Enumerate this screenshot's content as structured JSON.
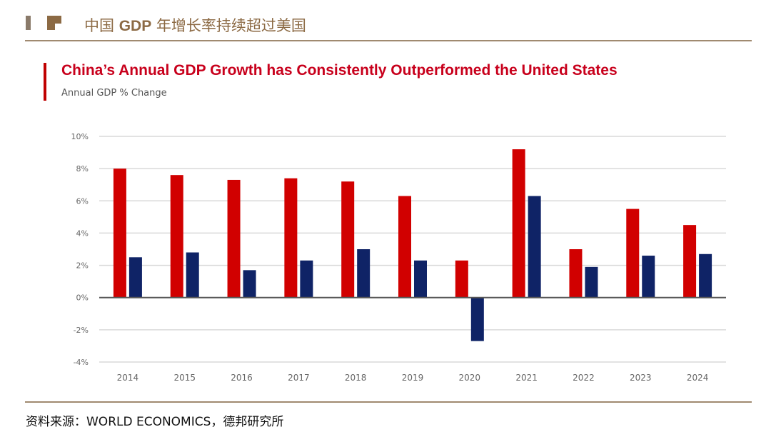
{
  "header": {
    "prefix": "中国 ",
    "bold": "GDP",
    "suffix": " 年增长率持续超过美国"
  },
  "chart_data": {
    "type": "bar",
    "title": "China’s Annual GDP Growth has Consistently Outperformed the United States",
    "subtitle": "Annual GDP % Change",
    "categories": [
      "2014",
      "2015",
      "2016",
      "2017",
      "2018",
      "2019",
      "2020",
      "2021",
      "2022",
      "2023",
      "2024"
    ],
    "series": [
      {
        "values": [
          8.0,
          7.6,
          7.3,
          7.4,
          7.2,
          6.3,
          2.3,
          9.2,
          3.0,
          5.5,
          4.5
        ],
        "color": "#d10000"
      },
      {
        "values": [
          2.5,
          2.8,
          1.7,
          2.3,
          3.0,
          2.3,
          -2.7,
          6.3,
          1.9,
          2.6,
          2.7
        ],
        "color": "#0f2366"
      }
    ],
    "ylim": [
      -4,
      10
    ],
    "yticks": [
      "-4%",
      "-2%",
      "0%",
      "2%",
      "4%",
      "6%",
      "8%",
      "10%"
    ],
    "grid": true
  },
  "source": "资料来源：WORLD ECONOMICS，德邦研究所"
}
